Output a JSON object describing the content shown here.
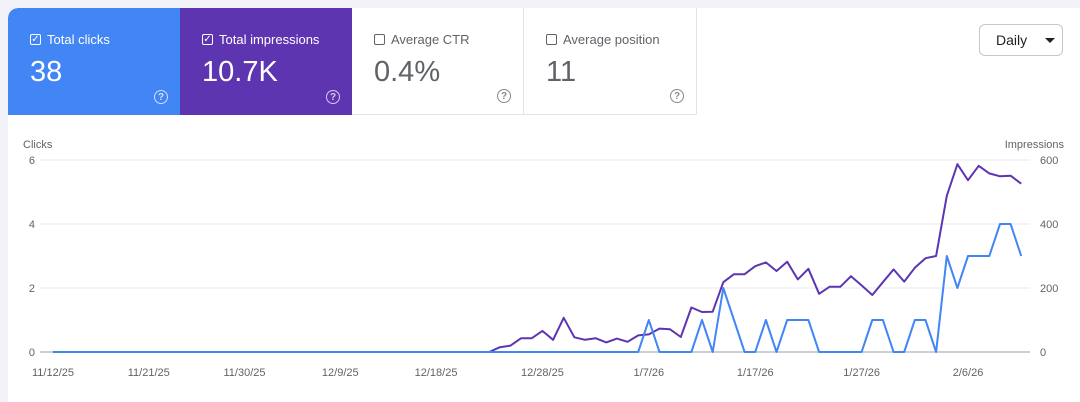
{
  "metrics": [
    {
      "label": "Total clicks",
      "value": "38",
      "checked": true,
      "color": "#4285f4"
    },
    {
      "label": "Total impressions",
      "value": "10.7K",
      "checked": true,
      "color": "#5e35b1"
    },
    {
      "label": "Average CTR",
      "value": "0.4%",
      "checked": false
    },
    {
      "label": "Average position",
      "value": "11",
      "checked": false
    }
  ],
  "help_icon": "question-circle-icon",
  "period_select": {
    "value": "Daily",
    "icon": "caret-down-icon"
  },
  "chart_data": {
    "type": "line",
    "ylabel_left": "Clicks",
    "ylabel_right": "Impressions",
    "ylim_left": [
      0,
      6
    ],
    "ylim_right": [
      0,
      600
    ],
    "yticks_left": [
      "0",
      "2",
      "4",
      "6"
    ],
    "yticks_right": [
      "0",
      "200",
      "400",
      "600"
    ],
    "xticks": [
      "11/12/25",
      "11/21/25",
      "11/30/25",
      "12/9/25",
      "12/18/25",
      "12/28/25",
      "1/7/26",
      "1/17/26",
      "1/27/26",
      "2/6/26"
    ],
    "grid": true,
    "x": [
      "11/12/25",
      "11/13/25",
      "11/14/25",
      "11/15/25",
      "11/16/25",
      "11/17/25",
      "11/18/25",
      "11/19/25",
      "11/20/25",
      "11/21/25",
      "11/22/25",
      "11/23/25",
      "11/24/25",
      "11/25/25",
      "11/26/25",
      "11/27/25",
      "11/28/25",
      "11/29/25",
      "11/30/25",
      "12/1/25",
      "12/2/25",
      "12/3/25",
      "12/4/25",
      "12/5/25",
      "12/6/25",
      "12/7/25",
      "12/8/25",
      "12/9/25",
      "12/10/25",
      "12/11/25",
      "12/12/25",
      "12/13/25",
      "12/14/25",
      "12/15/25",
      "12/16/25",
      "12/17/25",
      "12/18/25",
      "12/19/25",
      "12/20/25",
      "12/21/25",
      "12/22/25",
      "12/23/25",
      "12/24/25",
      "12/25/25",
      "12/26/25",
      "12/27/25",
      "12/28/25",
      "12/29/25",
      "12/30/25",
      "12/31/25",
      "1/1/26",
      "1/2/26",
      "1/3/26",
      "1/4/26",
      "1/5/26",
      "1/6/26",
      "1/7/26",
      "1/8/26",
      "1/9/26",
      "1/10/26",
      "1/11/26",
      "1/12/26",
      "1/13/26",
      "1/14/26",
      "1/15/26",
      "1/16/26",
      "1/17/26",
      "1/18/26",
      "1/19/26",
      "1/20/26",
      "1/21/26",
      "1/22/26",
      "1/23/26",
      "1/24/26",
      "1/25/26",
      "1/26/26",
      "1/27/26",
      "1/28/26",
      "1/29/26",
      "1/30/26",
      "1/31/26",
      "2/1/26",
      "2/2/26",
      "2/3/26",
      "2/4/26",
      "2/5/26",
      "2/6/26",
      "2/7/26",
      "2/8/26",
      "2/9/26",
      "2/10/26",
      "2/11/26"
    ],
    "series": [
      {
        "name": "Clicks",
        "axis": "left",
        "color": "#4285f4",
        "values": [
          0,
          0,
          0,
          0,
          0,
          0,
          0,
          0,
          0,
          0,
          0,
          0,
          0,
          0,
          0,
          0,
          0,
          0,
          0,
          0,
          0,
          0,
          0,
          0,
          0,
          0,
          0,
          0,
          0,
          0,
          0,
          0,
          0,
          0,
          0,
          0,
          0,
          0,
          0,
          0,
          0,
          0,
          0,
          0,
          0,
          0,
          0,
          0,
          0,
          0,
          0,
          0,
          0,
          0,
          0,
          0,
          1,
          0,
          0,
          0,
          0,
          1,
          0,
          2,
          1,
          0,
          0,
          1,
          0,
          1,
          1,
          1,
          0,
          0,
          0,
          0,
          0,
          1,
          1,
          0,
          0,
          1,
          1,
          0,
          3,
          2,
          3,
          3,
          3,
          4,
          4,
          3
        ]
      },
      {
        "name": "Impressions",
        "axis": "right",
        "color": "#5e35b1",
        "values": [
          0,
          0,
          0,
          0,
          0,
          0,
          0,
          0,
          0,
          0,
          0,
          0,
          0,
          0,
          0,
          0,
          0,
          0,
          0,
          0,
          0,
          0,
          0,
          0,
          0,
          0,
          0,
          0,
          0,
          0,
          0,
          0,
          0,
          0,
          0,
          0,
          0,
          0,
          0,
          0,
          0,
          0,
          15,
          20,
          43,
          43,
          66,
          38,
          107,
          46,
          38,
          43,
          30,
          42,
          32,
          52,
          55,
          73,
          71,
          47,
          139,
          125,
          126,
          218,
          243,
          243,
          268,
          280,
          253,
          282,
          227,
          260,
          182,
          204,
          204,
          237,
          208,
          178,
          218,
          258,
          220,
          263,
          293,
          300,
          488,
          587,
          537,
          582,
          558,
          549,
          551,
          526
        ]
      }
    ]
  }
}
